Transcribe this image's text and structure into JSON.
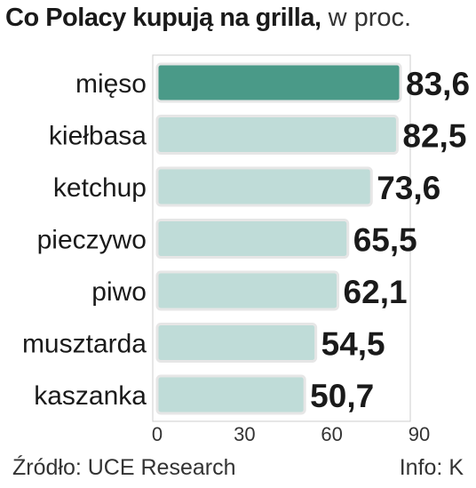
{
  "chart_data": {
    "type": "bar",
    "orientation": "horizontal",
    "title": "Co Polacy kupują na grilla,",
    "subtitle": "w proc.",
    "categories": [
      "mięso",
      "kiełbasa",
      "ketchup",
      "pieczywo",
      "piwo",
      "musztarda",
      "kaszanka"
    ],
    "values": [
      83.6,
      82.5,
      73.6,
      65.5,
      62.1,
      54.5,
      50.7
    ],
    "value_labels": [
      "83,6",
      "82,5",
      "73,6",
      "65,5",
      "62,1",
      "54,5",
      "50,7"
    ],
    "xlim": [
      0,
      90
    ],
    "x_ticks": [
      "0",
      "30",
      "60",
      "90"
    ],
    "grid": false,
    "highlight_index": 0,
    "colors": {
      "highlight_fill": "#4a9a88",
      "bar_fill": "#bfdcd8",
      "bar_border": "#e6e6e6",
      "panel_border": "#cccccc"
    }
  },
  "footer": {
    "source": "Źródło: UCE Research",
    "credit": "Info: K"
  }
}
